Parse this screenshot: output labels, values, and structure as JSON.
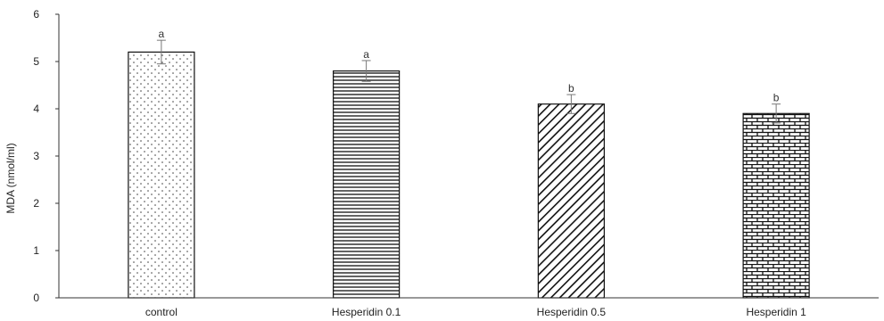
{
  "chart_data": {
    "type": "bar",
    "title": "",
    "xlabel": "",
    "ylabel": "MDA (nmol/ml)",
    "ylim": [
      0,
      6
    ],
    "yticks": [
      0,
      1,
      2,
      3,
      4,
      5,
      6
    ],
    "grid": false,
    "categories": [
      "control",
      "Hesperidin 0.1",
      "Hesperidin 0.5",
      "Hesperidin 1"
    ],
    "values": [
      5.2,
      4.8,
      4.1,
      3.9
    ],
    "errors": [
      0.25,
      0.22,
      0.2,
      0.2
    ],
    "significance_letters": [
      "a",
      "a",
      "b",
      "b"
    ],
    "bar_patterns": [
      "dots",
      "horizontal-lines",
      "diagonal-lines",
      "bricks"
    ]
  }
}
